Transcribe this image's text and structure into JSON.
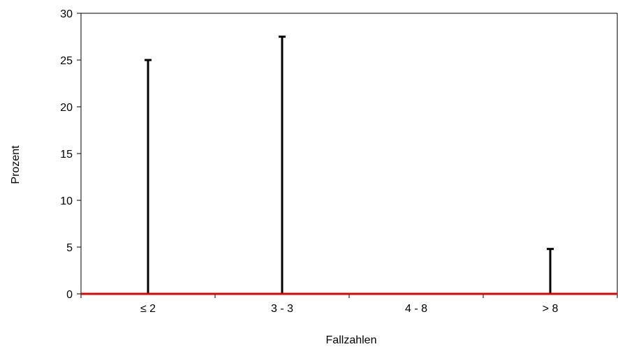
{
  "chart_data": {
    "type": "bar",
    "title": "",
    "xlabel": "Fallzahlen",
    "ylabel": "Prozent",
    "categories": [
      "≤ 2",
      "3 - 3",
      "4 - 8",
      "> 8"
    ],
    "values": [
      25,
      27.5,
      0,
      4.8
    ],
    "ylim": [
      0,
      30
    ],
    "yticks": [
      0,
      5,
      10,
      15,
      20,
      25,
      30
    ],
    "grid": false,
    "legend": "none",
    "colors": {
      "bar": "#000000",
      "baseline": "#e00000",
      "axis": "#000000"
    }
  }
}
